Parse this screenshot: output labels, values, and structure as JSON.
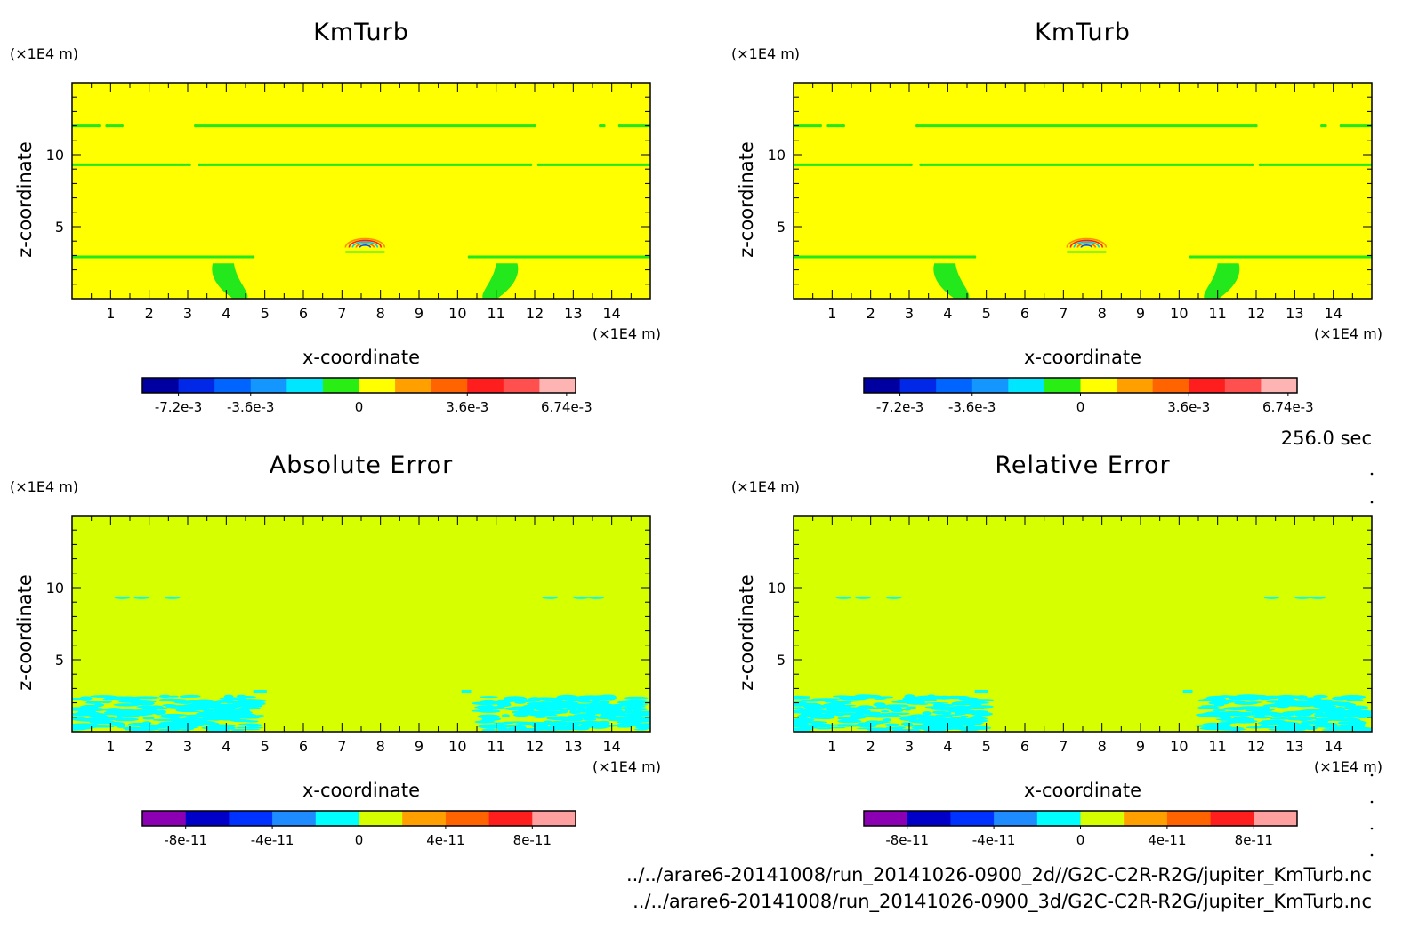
{
  "timestamp": "256.0 sec",
  "source_files": [
    "../../arare6-20141008/run_20141026-0900_2d//G2C-C2R-R2G/jupiter_KmTurb.nc",
    "../../arare6-20141008/run_20141026-0900_3d/G2C-C2R-R2G/jupiter_KmTurb.nc"
  ],
  "colors": {
    "km_background": "#ffff00",
    "km_green": "#22e81c",
    "err_background": "#d6ff00",
    "err_cyan": "#00ffff"
  },
  "panels": [
    {
      "id": "kmturb-2d",
      "title": "KmTurb",
      "colorbar": {
        "colors": [
          "#0000a0",
          "#0028e6",
          "#0064ff",
          "#1496ff",
          "#00e6ff",
          "#28ee14",
          "#ffff00",
          "#ffa000",
          "#ff6400",
          "#ff1e1e",
          "#ff5050",
          "#ffb4b4"
        ],
        "labels": [
          "-7.2e-3",
          "-3.6e-3",
          "0",
          "3.6e-3",
          "6.74e-3"
        ]
      }
    },
    {
      "id": "kmturb-3d",
      "title": "KmTurb",
      "colorbar": {
        "colors": [
          "#0000a0",
          "#0028e6",
          "#0064ff",
          "#1496ff",
          "#00e6ff",
          "#28ee14",
          "#ffff00",
          "#ffa000",
          "#ff6400",
          "#ff1e1e",
          "#ff5050",
          "#ffb4b4"
        ],
        "labels": [
          "-7.2e-3",
          "-3.6e-3",
          "0",
          "3.6e-3",
          "6.74e-3"
        ]
      }
    },
    {
      "id": "absolute-error",
      "title": "Absolute Error",
      "colorbar": {
        "colors": [
          "#8c00b4",
          "#0000c8",
          "#0032ff",
          "#1e8cff",
          "#00ffff",
          "#d6ff00",
          "#ffa000",
          "#ff6400",
          "#ff1e1e",
          "#ffa0a0"
        ],
        "labels": [
          "-8e-11",
          "-4e-11",
          "0",
          "4e-11",
          "8e-11"
        ]
      }
    },
    {
      "id": "relative-error",
      "title": "Relative Error",
      "colorbar": {
        "colors": [
          "#8c00b4",
          "#0000c8",
          "#0032ff",
          "#1e8cff",
          "#00ffff",
          "#d6ff00",
          "#ffa000",
          "#ff6400",
          "#ff1e1e",
          "#ffa0a0"
        ],
        "labels": [
          "-8e-11",
          "-4e-11",
          "0",
          "4e-11",
          "8e-11"
        ]
      }
    }
  ],
  "chart_data": [
    {
      "type": "heatmap",
      "title": "KmTurb",
      "xlabel": "x-coordinate",
      "ylabel": "z-coordinate",
      "x_unit": "(×1E4 m)",
      "y_unit": "(×1E4 m)",
      "xlim": [
        0,
        15
      ],
      "ylim": [
        0,
        15
      ],
      "x_ticks": [
        1,
        2,
        3,
        4,
        5,
        6,
        7,
        8,
        9,
        10,
        11,
        12,
        13,
        14
      ],
      "y_ticks": [
        5,
        10
      ],
      "colorbar_labels": [
        "-7.2e-3",
        "-3.6e-3",
        "0",
        "3.6e-3",
        "6.74e-3"
      ]
    },
    {
      "type": "heatmap",
      "title": "KmTurb",
      "xlabel": "x-coordinate",
      "ylabel": "z-coordinate",
      "x_unit": "(×1E4 m)",
      "y_unit": "(×1E4 m)",
      "xlim": [
        0,
        15
      ],
      "ylim": [
        0,
        15
      ],
      "x_ticks": [
        1,
        2,
        3,
        4,
        5,
        6,
        7,
        8,
        9,
        10,
        11,
        12,
        13,
        14
      ],
      "y_ticks": [
        5,
        10
      ],
      "colorbar_labels": [
        "-7.2e-3",
        "-3.6e-3",
        "0",
        "3.6e-3",
        "6.74e-3"
      ]
    },
    {
      "type": "heatmap",
      "title": "Absolute Error",
      "xlabel": "x-coordinate",
      "ylabel": "z-coordinate",
      "x_unit": "(×1E4 m)",
      "y_unit": "(×1E4 m)",
      "xlim": [
        0,
        15
      ],
      "ylim": [
        0,
        15
      ],
      "x_ticks": [
        1,
        2,
        3,
        4,
        5,
        6,
        7,
        8,
        9,
        10,
        11,
        12,
        13,
        14
      ],
      "y_ticks": [
        5,
        10
      ],
      "colorbar_labels": [
        "-8e-11",
        "-4e-11",
        "0",
        "4e-11",
        "8e-11"
      ]
    },
    {
      "type": "heatmap",
      "title": "Relative Error",
      "xlabel": "x-coordinate",
      "ylabel": "z-coordinate",
      "x_unit": "(×1E4 m)",
      "y_unit": "(×1E4 m)",
      "xlim": [
        0,
        15
      ],
      "ylim": [
        0,
        15
      ],
      "x_ticks": [
        1,
        2,
        3,
        4,
        5,
        6,
        7,
        8,
        9,
        10,
        11,
        12,
        13,
        14
      ],
      "y_ticks": [
        5,
        10
      ],
      "colorbar_labels": [
        "-8e-11",
        "-4e-11",
        "0",
        "4e-11",
        "8e-11"
      ]
    }
  ]
}
